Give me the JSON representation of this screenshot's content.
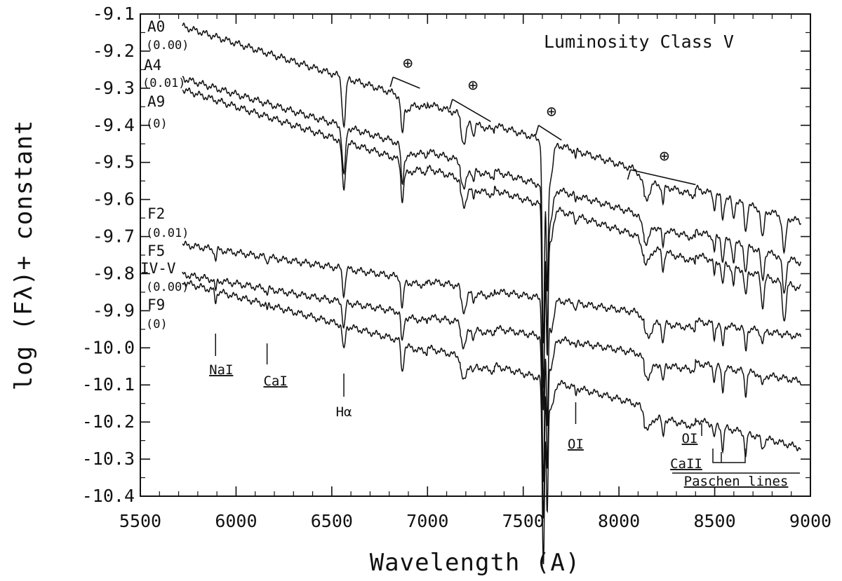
{
  "chart_data": {
    "type": "line",
    "title": "Luminosity Class V",
    "xlabel": "Wavelength (A)",
    "ylabel": "log (Fλ)+ constant",
    "xlim": [
      5500,
      9000
    ],
    "ylim": [
      -10.4,
      -9.1
    ],
    "x_ticks": [
      "5500",
      "6000",
      "6500",
      "7000",
      "7500",
      "8000",
      "8500",
      "9000"
    ],
    "y_ticks": [
      "-9.1",
      "-9.2",
      "-9.3",
      "-9.4",
      "-9.5",
      "-9.6",
      "-9.7",
      "-9.8",
      "-9.9",
      "-10.0",
      "-10.1",
      "-10.2",
      "-10.3",
      "-10.4"
    ],
    "grid": false,
    "series": [
      {
        "name": "A0",
        "reddening": "(0.00)",
        "start": -9.13,
        "end": -9.66
      },
      {
        "name": "A4",
        "reddening": "(0.01)",
        "start": -9.27,
        "end": -9.77
      },
      {
        "name": "A9",
        "reddening": "(0)",
        "start": -9.3,
        "end": -9.84
      },
      {
        "name": "F2",
        "reddening": "(0.01)",
        "start": -9.72,
        "end": -9.97
      },
      {
        "name": "F5 IV-V",
        "reddening": "(0.00)",
        "start": -9.8,
        "end": -10.09
      },
      {
        "name": "F9",
        "reddening": "(0)",
        "start": -9.82,
        "end": -10.27
      }
    ],
    "telluric": [
      {
        "label": "⊕",
        "x1": 6820,
        "x2": 6960
      },
      {
        "label": "⊕",
        "x1": 7130,
        "x2": 7330
      },
      {
        "label": "⊕",
        "x1": 7580,
        "x2": 7700
      },
      {
        "label": "⊕",
        "x1": 8060,
        "x2": 8400
      }
    ],
    "line_annotations": [
      {
        "label": "NaI",
        "x": 5893
      },
      {
        "label": "CaI",
        "x": 6162
      },
      {
        "label": "Hα",
        "x": 6563
      },
      {
        "label": "OI",
        "x": 7774
      },
      {
        "label": "OI",
        "x": 8446
      },
      {
        "label": "CaII",
        "x": 8500
      },
      {
        "label": "Paschen lines",
        "x": 8750
      }
    ]
  }
}
